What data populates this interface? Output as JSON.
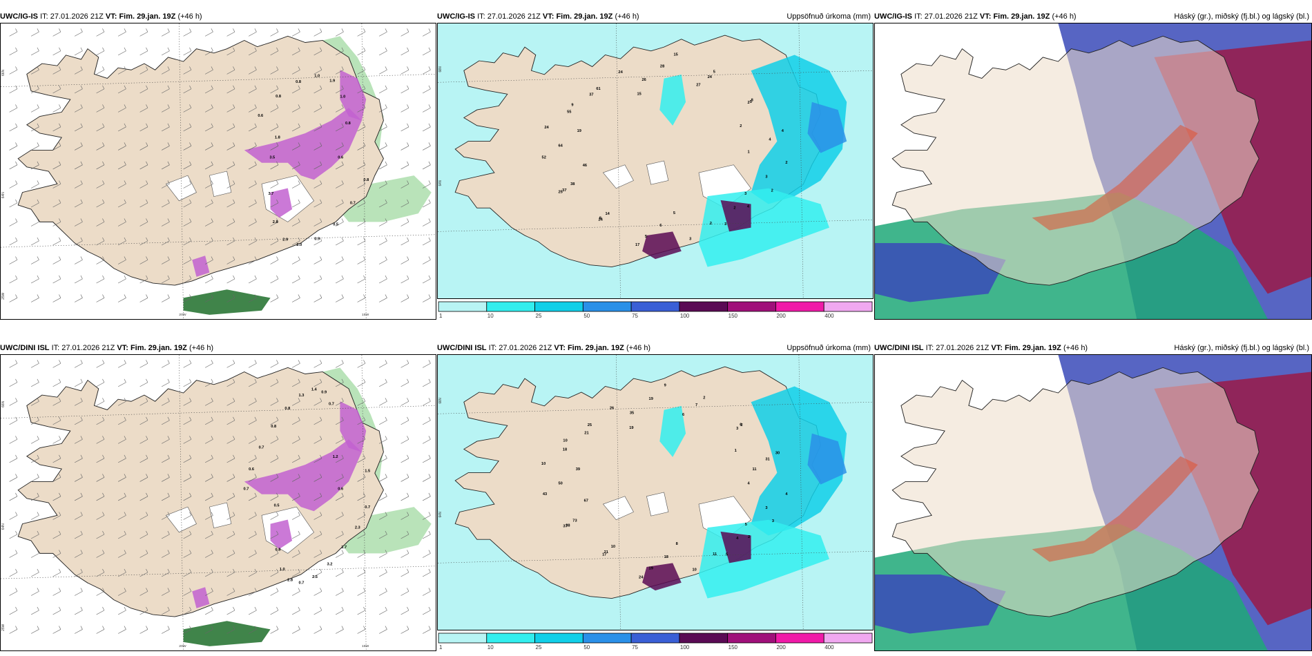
{
  "panels": [
    {
      "model": "UWC/IG-IS",
      "it_label": "IT:",
      "it": "27.01.2026 21Z",
      "vt_label": "VT:",
      "vt": "Fim. 29.jan. 19Z",
      "lead": "(+46 h)",
      "field": "",
      "type": "precip-rate",
      "labels": [
        "0.6",
        "0.8",
        "0.7",
        "0.5",
        "0.9",
        "2.0",
        "2.9",
        "2.8",
        "3.7",
        "3.5",
        "1.8",
        "0.6",
        "0.8",
        "0.8",
        "1.0",
        "1.9",
        "1.0",
        "0.8"
      ],
      "axes": {
        "lat": [
          "66N",
          "64N",
          "25W"
        ],
        "lon": [
          "20W",
          "15W"
        ]
      }
    },
    {
      "model": "UWC/IG-IS",
      "it_label": "IT:",
      "it": "27.01.2026 21Z",
      "vt_label": "VT:",
      "vt": "Fim. 29.jan. 19Z",
      "lead": "(+46 h)",
      "field": "Uppsöfnuð úrkoma (mm)",
      "type": "accum",
      "labels": [
        "1",
        "2",
        "3",
        "3",
        "2",
        "4",
        "3",
        "2",
        "2",
        "3",
        "5",
        "6",
        "5",
        "17",
        "14",
        "8",
        "24",
        "25",
        "37",
        "38",
        "46",
        "52",
        "64",
        "19",
        "24",
        "55",
        "37",
        "9",
        "61",
        "24",
        "15",
        "26",
        "28",
        "15",
        "27",
        "24",
        "5",
        "5",
        "8",
        "2",
        "2",
        "4",
        "4"
      ],
      "axes": {
        "lat": [
          "66N",
          "64N"
        ],
        "lon": []
      }
    },
    {
      "model": "UWC/IG-IS",
      "it_label": "IT:",
      "it": "27.01.2026 21Z",
      "vt_label": "VT:",
      "vt": "Fim. 29.jan. 19Z",
      "lead": "(+46 h)",
      "field": "Háský (gr.), miðský (fj.bl.) og lágský (bl.)",
      "type": "cloud",
      "labels": [],
      "axes": {
        "lat": [],
        "lon": []
      }
    },
    {
      "model": "UWC/DINI ISL",
      "it_label": "IT:",
      "it": "27.01.2026 21Z",
      "vt_label": "VT:",
      "vt": "Fim. 29.jan. 19Z",
      "lead": "(+46 h)",
      "field": "",
      "type": "precip-rate",
      "labels": [
        "0.6",
        "0.7",
        "2.3",
        "1.7",
        "3.2",
        "2.5",
        "0.7",
        "2.8",
        "1.0",
        "0.8",
        "0.5",
        "0.7",
        "0.6",
        "0.7",
        "0.8",
        "0.8",
        "1.3",
        "1.4",
        "0.9",
        "0.7",
        "1.2",
        "1.5"
      ],
      "axes": {
        "lat": [
          "66N",
          "64N",
          "25W"
        ],
        "lon": [
          "20W",
          "15W"
        ]
      }
    },
    {
      "model": "UWC/DINI ISL",
      "it_label": "IT:",
      "it": "27.01.2026 21Z",
      "vt_label": "VT:",
      "vt": "Fim. 29.jan. 19Z",
      "lead": "(+46 h)",
      "field": "Uppsöfnuð úrkoma (mm)",
      "type": "accum",
      "labels": [
        "4",
        "4",
        "3",
        "5",
        "3",
        "2",
        "5",
        "4",
        "11",
        "10",
        "8",
        "18",
        "19",
        "24",
        "10",
        "21",
        "17",
        "37",
        "38",
        "73",
        "67",
        "43",
        "50",
        "39",
        "10",
        "18",
        "21",
        "10",
        "25",
        "26",
        "19",
        "35",
        "19",
        "9",
        "6",
        "7",
        "2",
        "3",
        "2",
        "6",
        "1",
        "30",
        "31",
        "11"
      ],
      "axes": {
        "lat": [
          "66N",
          "64N"
        ],
        "lon": []
      }
    },
    {
      "model": "UWC/DINI ISL",
      "it_label": "IT:",
      "it": "27.01.2026 21Z",
      "vt_label": "VT:",
      "vt": "Fim. 29.jan. 19Z",
      "lead": "(+46 h)",
      "field": "Háský (gr.), miðský (fj.bl.) og lágský (bl.)",
      "type": "cloud",
      "labels": [],
      "axes": {
        "lat": [],
        "lon": []
      }
    }
  ],
  "precip_legend": {
    "ticks": [
      "1",
      "10",
      "25",
      "50",
      "75",
      "100",
      "150",
      "200",
      "400"
    ],
    "colors": [
      "#b8f4f4",
      "#33eeee",
      "#11cfe8",
      "#2a90e8",
      "#3a5fd6",
      "#5a0a54",
      "#a0107a",
      "#f01aa8",
      "#f0a8f0"
    ]
  },
  "colors": {
    "land": "#ecdcc8",
    "sea_precip": "#ffffff",
    "sea_accum": "#b8f4f4",
    "magenta": "#c262d0",
    "green": "#a8dca8",
    "dkgreen": "#1e6e2a",
    "cloud_high": "#9a1a48",
    "cloud_mid": "#3a4ab8",
    "cloud_low": "#1ea878"
  }
}
